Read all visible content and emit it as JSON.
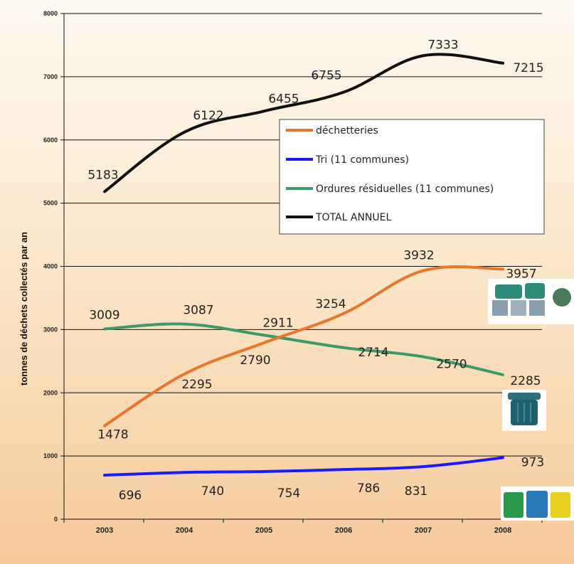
{
  "chart_data": {
    "type": "line",
    "title": "",
    "xlabel": "",
    "ylabel": "tonnes de déchets collectés par an",
    "categories": [
      "2003",
      "2004",
      "2005",
      "2006",
      "2007",
      "2008"
    ],
    "yticks": [
      0,
      1000,
      2000,
      3000,
      4000,
      5000,
      6000,
      7000,
      8000
    ],
    "ytick_labels": [
      "0",
      "1000",
      "2000",
      "3000",
      "4000",
      "5000",
      "6000",
      "7000",
      "8000"
    ],
    "ylim": [
      0,
      8000
    ],
    "grid": "horizontal",
    "legend_position": "top-right",
    "series": [
      {
        "name": "déchetteries",
        "color": "#e8762b",
        "values": [
          1478,
          2295,
          2790,
          3254,
          3932,
          3957
        ]
      },
      {
        "name": "Tri (11 communes)",
        "color": "#1a1aff",
        "values": [
          696,
          740,
          754,
          786,
          831,
          973
        ]
      },
      {
        "name": "Ordures résiduelles (11 communes)",
        "color": "#3a9a6a",
        "values": [
          3009,
          3087,
          2911,
          2714,
          2570,
          2285
        ]
      },
      {
        "name": "TOTAL ANNUEL",
        "color": "#111111",
        "values": [
          5183,
          6122,
          6455,
          6755,
          7333,
          7215
        ]
      }
    ]
  },
  "icons": [
    "recycling-bins-icon",
    "residual-waste-bin-icon",
    "sorting-bins-icon"
  ]
}
